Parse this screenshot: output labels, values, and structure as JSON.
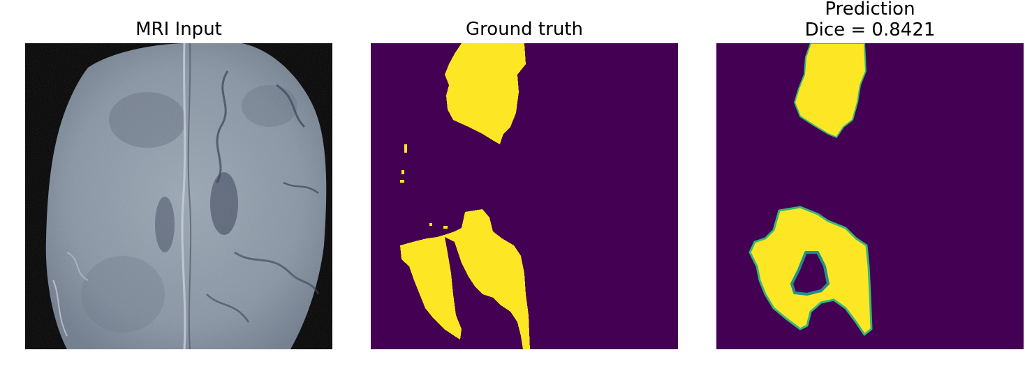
{
  "panels": [
    {
      "title": "MRI Input"
    },
    {
      "title": "Ground truth"
    },
    {
      "title_line1": "Prediction",
      "title_line2": "Dice = 0.8421"
    }
  ],
  "colors": {
    "background": "#ffffff",
    "mri_background": "#000000",
    "mask_background": "#440154",
    "mask_foreground": "#fde725",
    "mask_edge": "#21918c"
  }
}
